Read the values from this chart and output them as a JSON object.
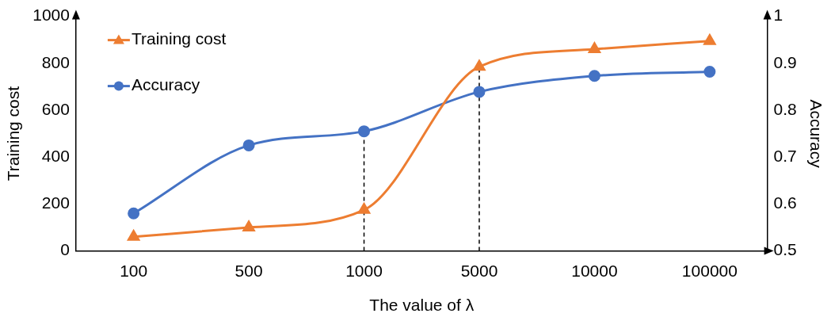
{
  "chart_data": {
    "type": "line",
    "xlabel": "The value of λ",
    "ylabel": "Training cost",
    "y2label": "Accuracy",
    "categories": [
      "100",
      "500",
      "1000",
      "5000",
      "10000",
      "100000"
    ],
    "series": [
      {
        "name": "Training cost",
        "color": "#ed7d31",
        "marker": "triangle",
        "values": [
          60,
          100,
          175,
          785,
          860,
          895
        ]
      },
      {
        "name": "Accuracy",
        "color": "#4472c4",
        "marker": "circle",
        "axis": "y2",
        "values": [
          0.58,
          0.725,
          0.755,
          0.839,
          0.873,
          0.882
        ]
      }
    ],
    "ylim": [
      0,
      1000
    ],
    "yticks": [
      0,
      200,
      400,
      600,
      800,
      1000
    ],
    "y2lim": [
      0.5,
      1
    ],
    "y2ticks": [
      0.5,
      0.6,
      0.7,
      0.8,
      0.9,
      1
    ],
    "ref_lines": [
      {
        "axis": "x",
        "value": "1000",
        "color": "#000000",
        "line_style": "dashed"
      },
      {
        "axis": "x",
        "value": "5000",
        "color": "#000000",
        "line_style": "dashed"
      }
    ],
    "grid": false,
    "legend": "top left"
  }
}
